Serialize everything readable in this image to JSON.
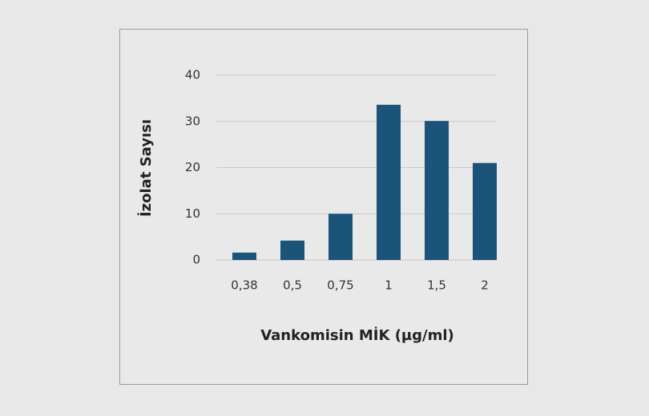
{
  "chart_data": {
    "type": "bar",
    "x_label": "Vankomisin MİK (µg/ml)",
    "y_label": "İzolat Sayısı",
    "categories": [
      "0,38",
      "0,5",
      "0,75",
      "1",
      "1,5",
      "2"
    ],
    "values": [
      1.6,
      4.2,
      10,
      33.6,
      30.1,
      21
    ],
    "color": "#1b5478",
    "ylim": [
      0,
      40
    ],
    "yticks": [
      0,
      10,
      20,
      30,
      40
    ],
    "grid": true
  }
}
